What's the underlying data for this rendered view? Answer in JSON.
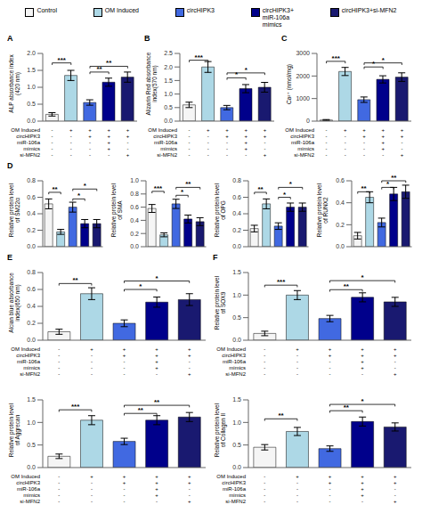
{
  "chart_data": [
    {
      "type": "bar",
      "title": "A",
      "legend": "top",
      "tick_labels": "y",
      "categories": [
        "Control",
        "OM Induced",
        "circHIPK3",
        "circHIPK3+\nmiR-106a\nmimics",
        "circHIPK3+si-MFN2"
      ],
      "colors": [
        "#f5f5f5",
        "#add8e6",
        "#4169e1",
        "#00008b",
        "#191970"
      ],
      "values": [
        0.2,
        1.35,
        0.55,
        1.15,
        1.3
      ],
      "errors": [
        0.05,
        0.15,
        0.08,
        0.12,
        0.15
      ],
      "ylabel": "ALP absorbance index\n(420 nm)",
      "ylim": [
        0,
        2.0
      ],
      "yticks": [
        {
          "value": 0.0,
          "label": "0.0"
        },
        0.5,
        {
          "value": 1.0,
          "label": "1.0"
        },
        1.5,
        {
          "value": 2.0,
          "label": "2.0"
        }
      ],
      "annotations": [
        {
          "from": "Control",
          "to": "OM Induced",
          "y": 1.72,
          "text": "***"
        },
        {
          "from": "circHIPK3",
          "to": "circHIPK3+\nmiR-106a\nmimics",
          "y": 1.45,
          "text": "**"
        },
        {
          "from": "circHIPK3",
          "to": "circHIPK3+si-MFN2",
          "y": 1.62,
          "text": "**"
        }
      ],
      "table": [
        {
          "label": "OM Induced",
          "cells": [
            "-",
            "+",
            "+",
            "+",
            "+"
          ]
        },
        {
          "label": "circHIPK3",
          "cells": [
            "-",
            "-",
            "+",
            "+",
            "+"
          ]
        },
        {
          "label": "miR-106a",
          "cells": [
            "-",
            "-",
            "-",
            "+",
            "-"
          ]
        },
        {
          "label": "mimics",
          "cells": [
            "-",
            "-",
            "-",
            "+",
            "-"
          ]
        },
        {
          "label": "si-MFN2",
          "cells": [
            "-",
            "-",
            "-",
            "-",
            "+"
          ]
        }
      ]
    },
    {
      "type": "bar",
      "title": "B",
      "tick_labels": "y",
      "categories": [
        "Control",
        "OM Induced",
        "circHIPK3",
        "circHIPK3+\nmiR-106a\nmimics",
        "circHIPK3+si-MFN2"
      ],
      "colors": [
        "#f5f5f5",
        "#add8e6",
        "#4169e1",
        "#00008b",
        "#191970"
      ],
      "values": [
        0.6,
        2.0,
        0.5,
        1.2,
        1.25
      ],
      "errors": [
        0.1,
        0.2,
        0.08,
        0.15,
        0.18
      ],
      "ylabel": "Alizarin Red absorbance\nindex(570 nm)",
      "ylim": [
        0,
        2.5
      ],
      "yticks": [
        {
          "value": 0.0,
          "label": "0.0"
        },
        0.5,
        {
          "value": 1.0,
          "label": "1.0"
        },
        1.5,
        {
          "value": 2.0,
          "label": "2.0"
        },
        2.5
      ],
      "annotations": [
        {
          "from": "Control",
          "to": "OM Induced",
          "y": 2.25,
          "text": "***"
        },
        {
          "from": "circHIPK3",
          "to": "circHIPK3+\nmiR-106a\nmimics",
          "y": 1.6,
          "text": "*"
        },
        {
          "from": "circHIPK3",
          "to": "circHIPK3+si-MFN2",
          "y": 1.78,
          "text": "*"
        }
      ],
      "table": [
        {
          "label": "OM Induced",
          "cells": [
            "-",
            "+",
            "+",
            "+",
            "+"
          ]
        },
        {
          "label": "circHIPK3",
          "cells": [
            "-",
            "-",
            "+",
            "+",
            "+"
          ]
        },
        {
          "label": "miR-106a",
          "cells": [
            "-",
            "-",
            "-",
            "+",
            "-"
          ]
        },
        {
          "label": "mimics",
          "cells": [
            "-",
            "-",
            "-",
            "+",
            "-"
          ]
        },
        {
          "label": "si-MFN2",
          "cells": [
            "-",
            "-",
            "-",
            "-",
            "+"
          ]
        }
      ]
    },
    {
      "type": "bar",
      "title": "C",
      "tick_labels": "y",
      "categories": [
        "Control",
        "OM Induced",
        "circHIPK3",
        "circHIPK3+\nmiR-106a\nmimics",
        "circHIPK3+si-MFN2"
      ],
      "colors": [
        "#f5f5f5",
        "#add8e6",
        "#4169e1",
        "#00008b",
        "#191970"
      ],
      "values": [
        50,
        2200,
        950,
        1850,
        1950
      ],
      "errors": [
        20,
        180,
        120,
        160,
        190
      ],
      "ylabel": "Ca²⁺ (nmol/mg)",
      "ylim": [
        0,
        3000
      ],
      "yticks": [
        0,
        1000,
        2000,
        3000
      ],
      "annotations": [
        {
          "from": "Control",
          "to": "OM Induced",
          "y": 2650,
          "text": "***"
        },
        {
          "from": "circHIPK3",
          "to": "circHIPK3+\nmiR-106a\nmimics",
          "y": 2400,
          "text": "*"
        },
        {
          "from": "circHIPK3",
          "to": "circHIPK3+si-MFN2",
          "y": 2580,
          "text": "*"
        }
      ],
      "table": [
        {
          "label": "OM Induced",
          "cells": [
            "-",
            "+",
            "+",
            "+",
            "+"
          ]
        },
        {
          "label": "circHIPK3",
          "cells": [
            "-",
            "-",
            "+",
            "+",
            "+"
          ]
        },
        {
          "label": "miR-106a",
          "cells": [
            "-",
            "-",
            "-",
            "+",
            "-"
          ]
        },
        {
          "label": "mimics",
          "cells": [
            "-",
            "-",
            "-",
            "+",
            "-"
          ]
        },
        {
          "label": "si-MFN2",
          "cells": [
            "-",
            "-",
            "-",
            "-",
            "+"
          ]
        }
      ]
    },
    {
      "type": "bar",
      "title": "D",
      "tick_labels": "y",
      "categories": [
        "Control",
        "OM Induced",
        "circHIPK3",
        "circHIPK3+\nmiR-106a\nmimics",
        "circHIPK3+si-MFN2"
      ],
      "colors": [
        "#f5f5f5",
        "#add8e6",
        "#4169e1",
        "#00008b",
        "#191970"
      ],
      "values": [
        0.52,
        0.18,
        0.48,
        0.28,
        0.28
      ],
      "errors": [
        0.06,
        0.03,
        0.06,
        0.05,
        0.05
      ],
      "ylabel": "Relative protein level\nof SM22α",
      "ylim": [
        0,
        0.8
      ],
      "yticks": [
        {
          "value": 0.0,
          "label": "0.0"
        },
        0.2,
        0.4,
        0.6,
        0.8
      ],
      "annotations": [
        {
          "from": "Control",
          "to": "OM Induced",
          "y": 0.66,
          "text": "**"
        },
        {
          "from": "circHIPK3",
          "to": "circHIPK3+\nmiR-106a\nmimics",
          "y": 0.58,
          "text": "*"
        },
        {
          "from": "circHIPK3",
          "to": "circHIPK3+si-MFN2",
          "y": 0.7,
          "text": "*"
        }
      ]
    },
    {
      "type": "bar",
      "tick_labels": "y",
      "categories": [
        "Control",
        "OM Induced",
        "circHIPK3",
        "circHIPK3+\nmiR-106a\nmimics",
        "circHIPK3+si-MFN2"
      ],
      "colors": [
        "#f5f5f5",
        "#add8e6",
        "#4169e1",
        "#00008b",
        "#191970"
      ],
      "values": [
        0.58,
        0.18,
        0.65,
        0.42,
        0.38
      ],
      "errors": [
        0.06,
        0.03,
        0.07,
        0.06,
        0.06
      ],
      "ylabel": "Relative protein level\nof SMA",
      "ylim": [
        0,
        1.0
      ],
      "yticks": [
        {
          "value": 0.0,
          "label": "0.0"
        },
        0.2,
        0.4,
        0.6,
        0.8,
        {
          "value": 1.0,
          "label": "1.0"
        }
      ],
      "annotations": [
        {
          "from": "Control",
          "to": "OM Induced",
          "y": 0.84,
          "text": "***"
        },
        {
          "from": "circHIPK3",
          "to": "circHIPK3+\nmiR-106a\nmimics",
          "y": 0.78,
          "text": "*"
        },
        {
          "from": "circHIPK3",
          "to": "circHIPK3+si-MFN2",
          "y": 0.9,
          "text": "**"
        }
      ]
    },
    {
      "type": "bar",
      "tick_labels": "y",
      "categories": [
        "Control",
        "OM Induced",
        "circHIPK3",
        "circHIPK3+\nmiR-106a\nmimics",
        "circHIPK3+si-MFN2"
      ],
      "colors": [
        "#f5f5f5",
        "#add8e6",
        "#4169e1",
        "#00008b",
        "#191970"
      ],
      "values": [
        0.22,
        0.52,
        0.25,
        0.48,
        0.48
      ],
      "errors": [
        0.04,
        0.06,
        0.04,
        0.05,
        0.05
      ],
      "ylabel": "Relative protein level\nof OPG",
      "ylim": [
        0,
        0.8
      ],
      "yticks": [
        {
          "value": 0.0,
          "label": "0.0"
        },
        0.2,
        0.4,
        0.6,
        0.8
      ],
      "annotations": [
        {
          "from": "Control",
          "to": "OM Induced",
          "y": 0.66,
          "text": "**"
        },
        {
          "from": "circHIPK3",
          "to": "circHIPK3+\nmiR-106a\nmimics",
          "y": 0.6,
          "text": "*"
        },
        {
          "from": "circHIPK3",
          "to": "circHIPK3+si-MFN2",
          "y": 0.72,
          "text": "*"
        }
      ]
    },
    {
      "type": "bar",
      "tick_labels": "y",
      "categories": [
        "Control",
        "OM Induced",
        "circHIPK3",
        "circHIPK3+\nmiR-106a\nmimics",
        "circHIPK3+si-MFN2"
      ],
      "colors": [
        "#f5f5f5",
        "#add8e6",
        "#4169e1",
        "#00008b",
        "#191970"
      ],
      "values": [
        0.1,
        0.45,
        0.22,
        0.48,
        0.5
      ],
      "errors": [
        0.03,
        0.05,
        0.04,
        0.06,
        0.06
      ],
      "ylabel": "Relative protein level\nof RUNX2",
      "ylim": [
        0,
        0.6
      ],
      "yticks": [
        {
          "value": 0.0,
          "label": "0.0"
        },
        0.2,
        0.4,
        0.6
      ],
      "annotations": [
        {
          "from": "Control",
          "to": "OM Induced",
          "y": 0.5,
          "text": "**"
        },
        {
          "from": "circHIPK3",
          "to": "circHIPK3+\nmiR-106a\nmimics",
          "y": 0.54,
          "text": "*"
        },
        {
          "from": "circHIPK3",
          "to": "circHIPK3+si-MFN2",
          "y": 0.6,
          "text": "**"
        }
      ]
    },
    {
      "type": "bar",
      "title": "E",
      "tick_labels": "y",
      "categories": [
        "Control",
        "OM Induced",
        "circHIPK3",
        "circHIPK3+\nmiR-106a\nmimics",
        "circHIPK3+si-MFN2"
      ],
      "colors": [
        "#f5f5f5",
        "#add8e6",
        "#4169e1",
        "#00008b",
        "#191970"
      ],
      "values": [
        0.1,
        0.55,
        0.2,
        0.45,
        0.48
      ],
      "errors": [
        0.03,
        0.07,
        0.04,
        0.06,
        0.07
      ],
      "ylabel": "Alcian blue absorbance\nindex(650 nm)",
      "ylim": [
        0,
        0.8
      ],
      "yticks": [
        {
          "value": 0.0,
          "label": "0.0"
        },
        0.2,
        0.4,
        0.6,
        0.8
      ],
      "annotations": [
        {
          "from": "Control",
          "to": "OM Induced",
          "y": 0.67,
          "text": "**"
        },
        {
          "from": "circHIPK3",
          "to": "circHIPK3+\nmiR-106a\nmimics",
          "y": 0.6,
          "text": "*"
        },
        {
          "from": "circHIPK3",
          "to": "circHIPK3+si-MFN2",
          "y": 0.7,
          "text": "*"
        }
      ],
      "table": [
        {
          "label": "OM Induced",
          "cells": [
            "-",
            "+",
            "+",
            "+",
            "+"
          ]
        },
        {
          "label": "circHIPK3",
          "cells": [
            "-",
            "-",
            "+",
            "+",
            "+"
          ]
        },
        {
          "label": "miR-106a",
          "cells": [
            "-",
            "-",
            "-",
            "+",
            "-"
          ]
        },
        {
          "label": "mimics",
          "cells": [
            "-",
            "-",
            "-",
            "+",
            "-"
          ]
        },
        {
          "label": "si-MFN2",
          "cells": [
            "-",
            "-",
            "-",
            "-",
            "+"
          ]
        }
      ]
    },
    {
      "type": "bar",
      "title": "F",
      "tick_labels": "y",
      "categories": [
        "Control",
        "OM Induced",
        "circHIPK3",
        "circHIPK3+\nmiR-106a\nmimics",
        "circHIPK3+si-MFN2"
      ],
      "colors": [
        "#f5f5f5",
        "#add8e6",
        "#4169e1",
        "#00008b",
        "#191970"
      ],
      "values": [
        0.15,
        1.0,
        0.48,
        0.95,
        0.85
      ],
      "errors": [
        0.05,
        0.1,
        0.07,
        0.1,
        0.1
      ],
      "ylabel": "Relative protein level\nof SOX9",
      "ylim": [
        0,
        1.5
      ],
      "yticks": [
        {
          "value": 0.0,
          "label": "0.0"
        },
        0.5,
        {
          "value": 1.0,
          "label": "1.0"
        },
        1.5
      ],
      "annotations": [
        {
          "from": "Control",
          "to": "OM Induced",
          "y": 1.22,
          "text": "***"
        },
        {
          "from": "circHIPK3",
          "to": "circHIPK3+\nmiR-106a\nmimics",
          "y": 1.12,
          "text": "**"
        },
        {
          "from": "circHIPK3",
          "to": "circHIPK3+si-MFN2",
          "y": 1.32,
          "text": "*"
        }
      ],
      "table": [
        {
          "label": "OM Induced",
          "cells": [
            "-",
            "+",
            "+",
            "+",
            "+"
          ]
        },
        {
          "label": "circHIPK3",
          "cells": [
            "-",
            "-",
            "+",
            "+",
            "+"
          ]
        },
        {
          "label": "miR-106a",
          "cells": [
            "-",
            "-",
            "-",
            "+",
            "-"
          ]
        },
        {
          "label": "mimics",
          "cells": [
            "-",
            "-",
            "-",
            "+",
            "-"
          ]
        },
        {
          "label": "si-MFN2",
          "cells": [
            "-",
            "-",
            "-",
            "-",
            "+"
          ]
        }
      ]
    },
    {
      "type": "bar",
      "tick_labels": "y",
      "categories": [
        "Control",
        "OM Induced",
        "circHIPK3",
        "circHIPK3+\nmiR-106a\nmimics",
        "circHIPK3+si-MFN2"
      ],
      "colors": [
        "#f5f5f5",
        "#add8e6",
        "#4169e1",
        "#00008b",
        "#191970"
      ],
      "values": [
        0.25,
        1.05,
        0.58,
        1.05,
        1.12
      ],
      "errors": [
        0.05,
        0.1,
        0.07,
        0.1,
        0.1
      ],
      "ylabel": "Relative protein level\nof Aggrecan",
      "ylim": [
        0,
        1.5
      ],
      "yticks": [
        {
          "value": 0.0,
          "label": "0.0"
        },
        0.5,
        {
          "value": 1.0,
          "label": "1.0"
        },
        1.5
      ],
      "annotations": [
        {
          "from": "Control",
          "to": "OM Induced",
          "y": 1.28,
          "text": "***"
        },
        {
          "from": "circHIPK3",
          "to": "circHIPK3+\nmiR-106a\nmimics",
          "y": 1.2,
          "text": "**"
        },
        {
          "from": "circHIPK3",
          "to": "circHIPK3+si-MFN2",
          "y": 1.38,
          "text": "**"
        }
      ],
      "table": [
        {
          "label": "OM Induced",
          "cells": [
            "-",
            "+",
            "+",
            "+",
            "+"
          ]
        },
        {
          "label": "circHIPK3",
          "cells": [
            "-",
            "-",
            "+",
            "+",
            "+"
          ]
        },
        {
          "label": "miR-106a",
          "cells": [
            "-",
            "-",
            "-",
            "+",
            "-"
          ]
        },
        {
          "label": "mimics",
          "cells": [
            "-",
            "-",
            "-",
            "+",
            "-"
          ]
        },
        {
          "label": "si-MFN2",
          "cells": [
            "-",
            "-",
            "-",
            "-",
            "+"
          ]
        }
      ]
    },
    {
      "type": "bar",
      "tick_labels": "y",
      "categories": [
        "Control",
        "OM Induced",
        "circHIPK3",
        "circHIPK3+\nmiR-106a\nmimics",
        "circHIPK3+si-MFN2"
      ],
      "colors": [
        "#f5f5f5",
        "#add8e6",
        "#4169e1",
        "#00008b",
        "#191970"
      ],
      "values": [
        0.45,
        0.8,
        0.42,
        1.02,
        0.9
      ],
      "errors": [
        0.06,
        0.09,
        0.06,
        0.1,
        0.09
      ],
      "ylabel": "Relative protein level\nof Collagen II",
      "ylim": [
        0,
        1.5
      ],
      "yticks": [
        {
          "value": 0.0,
          "label": "0.0"
        },
        0.5,
        {
          "value": 1.0,
          "label": "1.0"
        },
        1.5
      ],
      "annotations": [
        {
          "from": "Control",
          "to": "OM Induced",
          "y": 1.08,
          "text": "**"
        },
        {
          "from": "circHIPK3",
          "to": "circHIPK3+\nmiR-106a\nmimics",
          "y": 1.26,
          "text": "**"
        },
        {
          "from": "circHIPK3",
          "to": "circHIPK3+si-MFN2",
          "y": 1.4,
          "text": "*"
        }
      ],
      "table": [
        {
          "label": "OM Induced",
          "cells": [
            "-",
            "+",
            "+",
            "+",
            "+"
          ]
        },
        {
          "label": "circHIPK3",
          "cells": [
            "-",
            "-",
            "+",
            "+",
            "+"
          ]
        },
        {
          "label": "miR-106a",
          "cells": [
            "-",
            "-",
            "-",
            "+",
            "-"
          ]
        },
        {
          "label": "mimics",
          "cells": [
            "-",
            "-",
            "-",
            "+",
            "-"
          ]
        },
        {
          "label": "si-MFN2",
          "cells": [
            "-",
            "-",
            "-",
            "-",
            "+"
          ]
        }
      ]
    }
  ]
}
